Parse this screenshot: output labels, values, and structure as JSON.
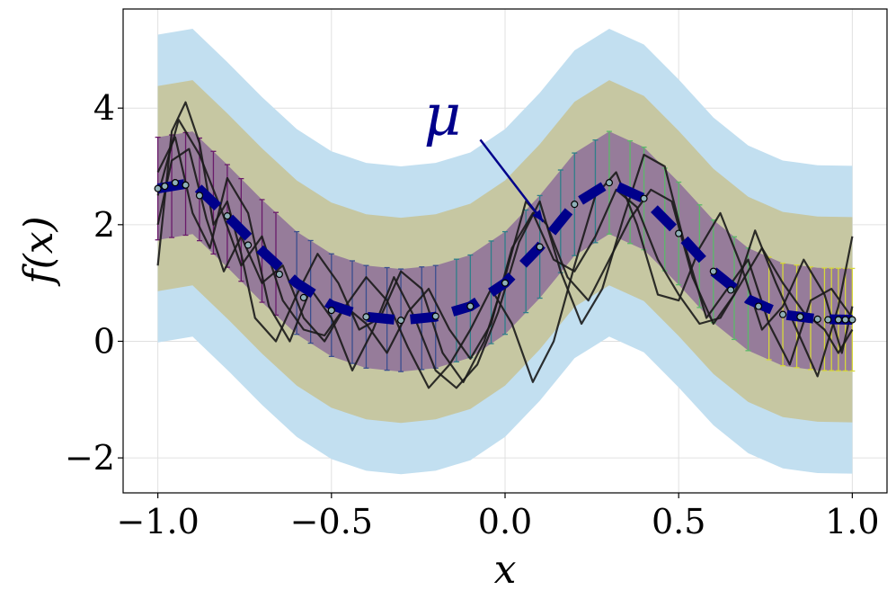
{
  "chart_data": {
    "type": "line",
    "title": "",
    "xlabel": "x",
    "ylabel": "f(x)",
    "xlim": [
      -1.1,
      1.1
    ],
    "ylim": [
      -2.6,
      5.7
    ],
    "xticks": [
      -1.0,
      -0.5,
      0.0,
      0.5,
      1.0
    ],
    "xtick_labels": [
      "−1.0",
      "−0.5",
      "0.0",
      "0.5",
      "1.0"
    ],
    "yticks": [
      -2,
      0,
      2,
      4
    ],
    "ytick_labels": [
      "−2",
      "0",
      "2",
      "4"
    ],
    "grid": true,
    "legend": "none",
    "x": [
      -1.0,
      -0.9,
      -0.8,
      -0.7,
      -0.6,
      -0.5,
      -0.4,
      -0.3,
      -0.2,
      -0.1,
      0.0,
      0.1,
      0.2,
      0.3,
      0.4,
      0.5,
      0.6,
      0.7,
      0.8,
      0.9,
      1.0
    ],
    "mean": [
      2.62,
      2.72,
      2.15,
      1.55,
      1.0,
      0.62,
      0.42,
      0.36,
      0.42,
      0.6,
      1.0,
      1.62,
      2.35,
      2.72,
      2.45,
      1.85,
      1.2,
      0.72,
      0.46,
      0.38,
      0.37
    ],
    "bands": [
      {
        "sigma": 3,
        "color": "#c2dff0"
      },
      {
        "sigma": 2,
        "color": "#c6c7a2"
      },
      {
        "sigma": 1,
        "color": "#967c9a"
      }
    ],
    "sigma": 0.88,
    "observed_points": {
      "x": [
        -1.0,
        -0.98,
        -0.95,
        -0.92,
        -0.88,
        -0.8,
        -0.74,
        -0.65,
        -0.58,
        -0.5,
        -0.4,
        -0.3,
        -0.2,
        -0.1,
        0.0,
        0.1,
        0.2,
        0.3,
        0.4,
        0.5,
        0.6,
        0.65,
        0.73,
        0.8,
        0.85,
        0.9,
        0.93,
        0.96,
        0.98,
        1.0
      ],
      "y": [
        2.62,
        2.66,
        2.72,
        2.68,
        2.5,
        2.15,
        1.65,
        1.15,
        0.75,
        0.53,
        0.42,
        0.36,
        0.43,
        0.6,
        1.0,
        1.62,
        2.35,
        2.72,
        2.45,
        1.85,
        1.2,
        0.88,
        0.6,
        0.46,
        0.42,
        0.38,
        0.37,
        0.37,
        0.37,
        0.37
      ]
    },
    "samples": [
      {
        "x": [
          -1.0,
          -0.96,
          -0.92,
          -0.88,
          -0.84,
          -0.8,
          -0.76,
          -0.72,
          -0.66,
          -0.6,
          -0.54,
          -0.48,
          -0.42,
          -0.36,
          -0.3,
          -0.24,
          -0.18,
          -0.12,
          -0.06,
          0.0,
          0.06,
          0.12,
          0.18,
          0.24,
          0.3,
          0.36,
          0.42,
          0.48,
          0.54,
          0.6,
          0.66,
          0.72,
          0.78,
          0.84,
          0.9,
          0.96,
          1.0
        ],
        "y": [
          1.3,
          3.6,
          4.1,
          3.4,
          2.0,
          2.4,
          1.5,
          0.4,
          0.0,
          0.8,
          1.5,
          1.0,
          0.2,
          0.4,
          1.2,
          0.9,
          -0.2,
          -0.7,
          0.0,
          1.1,
          2.4,
          2.0,
          1.1,
          0.7,
          1.4,
          2.1,
          2.6,
          2.4,
          1.1,
          0.3,
          0.8,
          1.9,
          1.0,
          0.2,
          -0.6,
          0.6,
          1.8
        ]
      },
      {
        "x": [
          -1.0,
          -0.95,
          -0.9,
          -0.85,
          -0.8,
          -0.74,
          -0.68,
          -0.62,
          -0.56,
          -0.5,
          -0.44,
          -0.38,
          -0.32,
          -0.26,
          -0.2,
          -0.14,
          -0.08,
          -0.02,
          0.04,
          0.1,
          0.16,
          0.22,
          0.28,
          0.34,
          0.4,
          0.46,
          0.52,
          0.58,
          0.64,
          0.7,
          0.76,
          0.82,
          0.88,
          0.94,
          1.0
        ],
        "y": [
          2.9,
          3.5,
          2.2,
          1.6,
          2.8,
          2.2,
          0.6,
          0.0,
          0.9,
          0.4,
          -0.5,
          0.2,
          1.1,
          0.4,
          -0.5,
          -0.8,
          -0.4,
          0.5,
          1.7,
          2.4,
          1.2,
          0.3,
          0.9,
          2.1,
          3.2,
          3.0,
          1.6,
          0.4,
          0.9,
          1.4,
          0.3,
          -0.4,
          0.7,
          0.9,
          0.4
        ]
      },
      {
        "x": [
          -1.0,
          -0.96,
          -0.91,
          -0.86,
          -0.81,
          -0.76,
          -0.7,
          -0.64,
          -0.58,
          -0.52,
          -0.46,
          -0.4,
          -0.34,
          -0.28,
          -0.22,
          -0.16,
          -0.1,
          -0.04,
          0.02,
          0.08,
          0.14,
          0.2,
          0.26,
          0.32,
          0.38,
          0.44,
          0.5,
          0.56,
          0.62,
          0.68,
          0.74,
          0.8,
          0.86,
          0.92,
          0.97,
          1.0
        ],
        "y": [
          2.0,
          3.1,
          3.3,
          2.1,
          1.2,
          1.8,
          1.0,
          1.3,
          0.4,
          0.0,
          0.6,
          1.1,
          0.7,
          -0.1,
          -0.8,
          -0.4,
          0.2,
          0.9,
          0.3,
          -0.7,
          0.0,
          1.3,
          2.5,
          2.9,
          2.0,
          0.8,
          0.7,
          1.6,
          2.2,
          1.3,
          0.2,
          0.6,
          1.4,
          0.8,
          -0.2,
          0.6
        ]
      },
      {
        "x": [
          -1.0,
          -0.94,
          -0.88,
          -0.82,
          -0.76,
          -0.7,
          -0.64,
          -0.58,
          -0.52,
          -0.46,
          -0.4,
          -0.34,
          -0.28,
          -0.22,
          -0.16,
          -0.1,
          -0.04,
          0.02,
          0.08,
          0.14,
          0.2,
          0.26,
          0.32,
          0.38,
          0.44,
          0.5,
          0.56,
          0.62,
          0.68,
          0.74,
          0.8,
          0.86,
          0.92,
          0.96,
          1.0
        ],
        "y": [
          2.5,
          3.8,
          3.2,
          2.3,
          1.3,
          1.8,
          0.7,
          0.2,
          0.1,
          0.6,
          0.3,
          -0.2,
          0.5,
          0.9,
          0.2,
          -0.3,
          0.3,
          1.6,
          2.2,
          1.4,
          1.2,
          1.8,
          2.6,
          2.3,
          1.4,
          0.8,
          0.3,
          0.4,
          1.0,
          1.6,
          1.0,
          0.5,
          0.2,
          -0.2,
          0.2
        ]
      }
    ],
    "errorbar_x": [
      -1.0,
      -0.96,
      -0.92,
      -0.88,
      -0.84,
      -0.8,
      -0.76,
      -0.7,
      -0.66,
      -0.6,
      -0.56,
      -0.5,
      -0.44,
      -0.4,
      -0.34,
      -0.3,
      -0.24,
      -0.2,
      -0.14,
      -0.1,
      -0.04,
      0.0,
      0.06,
      0.1,
      0.16,
      0.2,
      0.26,
      0.3,
      0.36,
      0.4,
      0.46,
      0.5,
      0.56,
      0.6,
      0.66,
      0.7,
      0.76,
      0.8,
      0.84,
      0.88,
      0.92,
      0.94,
      0.96,
      0.98,
      1.0
    ],
    "errorbar_colors": [
      "#6a1b6b",
      "#3b4f8f",
      "#2f7f8a",
      "#5bb86a",
      "#d6d83a"
    ],
    "annotation": {
      "text": "μ",
      "x": -0.18,
      "y": 3.55,
      "arrow_to_x": 0.11,
      "arrow_to_y": 2.05,
      "color": "#00008b"
    },
    "colors": {
      "mean_line": "#00008b",
      "samples": "#1a1a1a",
      "grid": "#e0e0e0"
    }
  }
}
